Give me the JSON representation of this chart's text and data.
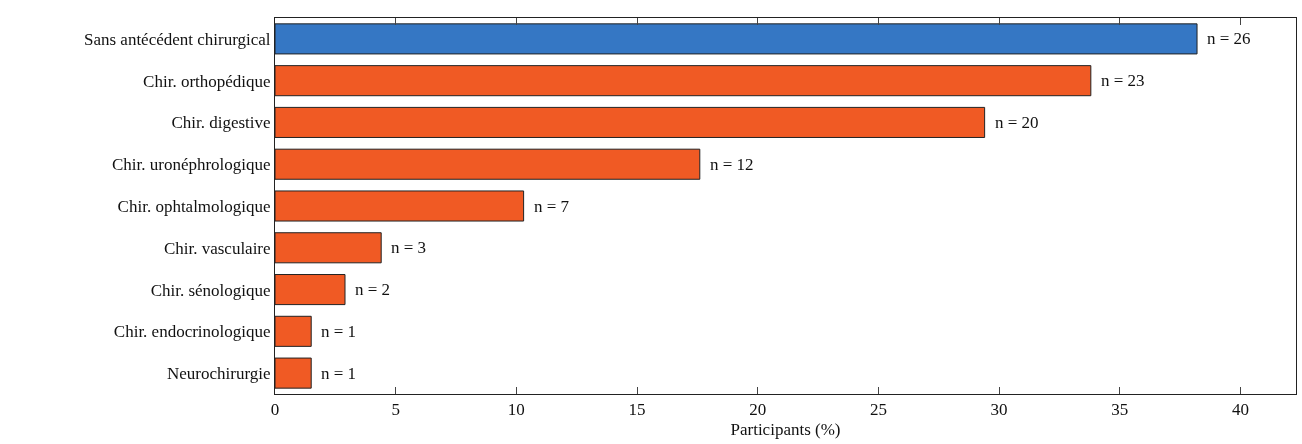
{
  "chart_data": {
    "type": "bar",
    "orientation": "horizontal",
    "xlabel": "Participants (%)",
    "categories": [
      "Sans antécédent chirurgical",
      "Chir. orthopédique",
      "Chir. digestive",
      "Chir. uronéphrologique",
      "Chir. ophtalmologique",
      "Chir. vasculaire",
      "Chir. sénologique",
      "Chir. endocrinologique",
      "Neurochirurgie"
    ],
    "values": [
      38.2,
      33.8,
      29.4,
      17.6,
      10.3,
      4.4,
      2.9,
      1.5,
      1.5
    ],
    "annotations": [
      {
        "text": "n = 26",
        "x": 38.2,
        "y": "Sans antécédent chirurgical"
      },
      {
        "text": "n = 23",
        "x": 33.8,
        "y": "Chir. orthopédique"
      },
      {
        "text": "n = 20",
        "x": 29.4,
        "y": "Chir. digestive"
      },
      {
        "text": "n = 12",
        "x": 17.6,
        "y": "Chir. uronéphrologique"
      },
      {
        "text": "n = 7",
        "x": 10.3,
        "y": "Chir. ophtalmologique"
      },
      {
        "text": "n = 3",
        "x": 4.4,
        "y": "Chir. vasculaire"
      },
      {
        "text": "n = 2",
        "x": 2.9,
        "y": "Chir. sénologique"
      },
      {
        "text": "n = 1",
        "x": 1.5,
        "y": "Chir. endocrinologique"
      },
      {
        "text": "n = 1",
        "x": 1.5,
        "y": "Neurochirurgie"
      }
    ],
    "colors": [
      "#3577c4",
      "#f05a24",
      "#f05a24",
      "#f05a24",
      "#f05a24",
      "#f05a24",
      "#f05a24",
      "#f05a24",
      "#f05a24"
    ],
    "xlim": [
      0,
      42.3
    ],
    "xticks": [
      0,
      5,
      10,
      15,
      20,
      25,
      30,
      35,
      40
    ],
    "grid": false,
    "legend": false
  }
}
